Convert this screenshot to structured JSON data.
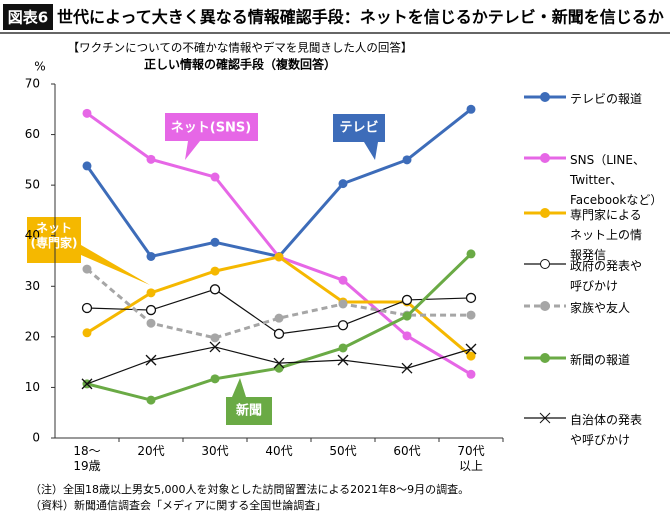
{
  "figure_label": "図表6",
  "title": "世代によって大きく異なる情報確認手段：ネットを信じるかテレビ・新聞を信じるか",
  "notes": [
    "（注）全国18歳以上男女5,000人を対象とした訪問留置法による2021年8～9月の調査。",
    "（資料）新聞通信調査会「メディアに関する全国世論調査」"
  ],
  "chart_data": {
    "type": "line",
    "subtitle": "【ワクチンについての不確かな情報やデマを見聞きした人の回答】",
    "subtitle2": "正しい情報の確認手段（複数回答）",
    "y_label": "%",
    "categories": [
      "18～\n19歳",
      "20代",
      "30代",
      "40代",
      "50代",
      "60代",
      "70代\n以上"
    ],
    "ylim": [
      0,
      70
    ],
    "yticks": [
      0,
      10,
      20,
      30,
      40,
      50,
      60,
      70
    ],
    "grid": false,
    "legend": "right",
    "series": [
      {
        "name": "テレビの報道",
        "color": "#3d6cb9",
        "marker": "circle",
        "dashed": false,
        "values": [
          53.8,
          35.9,
          38.7,
          35.9,
          50.3,
          55.0,
          65.0
        ]
      },
      {
        "name": "SNS（LINE、\nTwitter、\nFacebookなど）",
        "color": "#e667e6",
        "marker": "circle",
        "dashed": false,
        "values": [
          64.2,
          55.1,
          51.6,
          35.8,
          31.2,
          20.2,
          12.6
        ]
      },
      {
        "name": "専門家による\nネット上の情\n報発信",
        "color": "#f5b800",
        "marker": "circle",
        "dashed": false,
        "values": [
          20.8,
          28.7,
          33.0,
          35.8,
          26.9,
          26.9,
          16.2
        ]
      },
      {
        "name": "政府の発表や\n呼びかけ",
        "color": "#111111",
        "marker": "open-circle",
        "dashed": false,
        "values": [
          25.7,
          25.3,
          29.4,
          20.6,
          22.3,
          27.3,
          27.7
        ]
      },
      {
        "name": "家族や友人",
        "color": "#a6a6a6",
        "marker": "circle",
        "dashed": true,
        "values": [
          33.4,
          22.7,
          19.8,
          23.7,
          26.5,
          24.3,
          24.3
        ]
      },
      {
        "name": "新聞の報道",
        "color": "#6aaa45",
        "marker": "circle",
        "dashed": false,
        "values": [
          10.7,
          7.5,
          11.7,
          13.8,
          17.8,
          24.1,
          36.4
        ]
      },
      {
        "name": "自治体の発表\nや呼びかけ",
        "color": "#111111",
        "marker": "x",
        "dashed": false,
        "values": [
          10.7,
          15.4,
          18.0,
          14.8,
          15.4,
          13.8,
          17.6
        ]
      }
    ],
    "annotations": [
      "ネット(SNS)",
      "テレビ",
      "ネット\n(専門家)",
      "新聞"
    ]
  }
}
